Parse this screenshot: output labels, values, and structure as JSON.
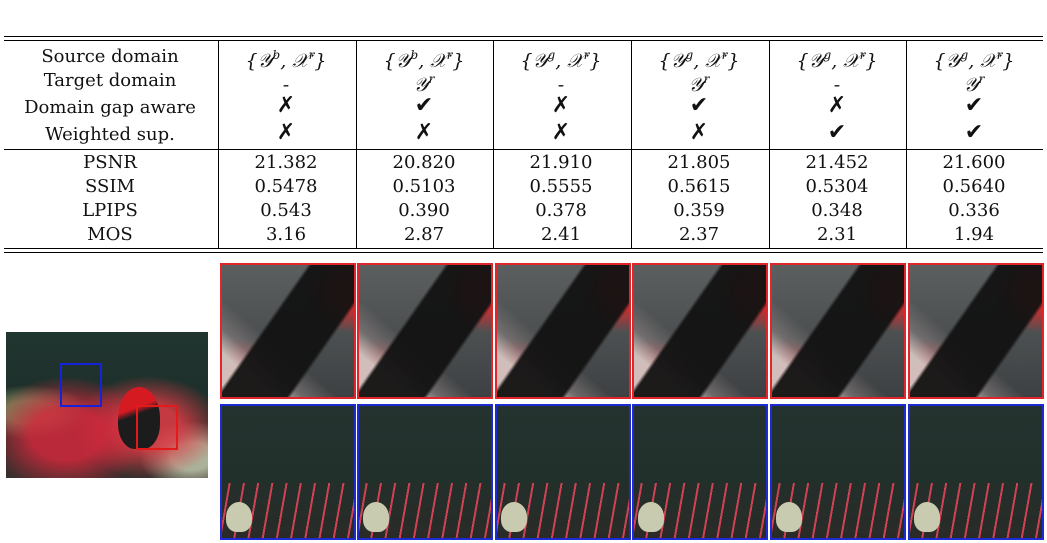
{
  "columns": [
    {
      "source": {
        "y": "𝒴",
        "ysup": "b",
        "x": "𝒳",
        "xsup": "r"
      },
      "target": "-",
      "target_sup": "",
      "domain_gap_aware": "✗",
      "weighted_sup": "✗"
    },
    {
      "source": {
        "y": "𝒴",
        "ysup": "b",
        "x": "𝒳",
        "xsup": "r"
      },
      "target": "𝒴",
      "target_sup": "r",
      "domain_gap_aware": "✔",
      "weighted_sup": "✗"
    },
    {
      "source": {
        "y": "𝒴",
        "ysup": "g",
        "x": "𝒳",
        "xsup": "r"
      },
      "target": "-",
      "target_sup": "",
      "domain_gap_aware": "✗",
      "weighted_sup": "✗"
    },
    {
      "source": {
        "y": "𝒴",
        "ysup": "g",
        "x": "𝒳",
        "xsup": "r"
      },
      "target": "𝒴",
      "target_sup": "r",
      "domain_gap_aware": "✔",
      "weighted_sup": "✗"
    },
    {
      "source": {
        "y": "𝒴",
        "ysup": "g",
        "x": "𝒳",
        "xsup": "r"
      },
      "target": "-",
      "target_sup": "",
      "domain_gap_aware": "✗",
      "weighted_sup": "✔"
    },
    {
      "source": {
        "y": "𝒴",
        "ysup": "g",
        "x": "𝒳",
        "xsup": "r"
      },
      "target": "𝒴",
      "target_sup": "r",
      "domain_gap_aware": "✔",
      "weighted_sup": "✔"
    }
  ],
  "row_labels": {
    "source": "Source domain",
    "target": "Target domain",
    "gap": "Domain gap aware",
    "weighted": "Weighted sup."
  },
  "metrics": [
    {
      "name": "PSNR",
      "values": [
        "21.382",
        "20.820",
        "21.910",
        "21.805",
        "21.452",
        "21.600"
      ]
    },
    {
      "name": "SSIM",
      "values": [
        "0.5478",
        "0.5103",
        "0.5555",
        "0.5615",
        "0.5304",
        "0.5640"
      ]
    },
    {
      "name": "LPIPS",
      "values": [
        "0.543",
        "0.390",
        "0.378",
        "0.359",
        "0.348",
        "0.336"
      ]
    },
    {
      "name": "MOS",
      "values": [
        "3.16",
        "2.87",
        "2.41",
        "2.37",
        "2.31",
        "1.94"
      ]
    }
  ],
  "colors": {
    "red_box": "#e0262a",
    "blue_box": "#1d2bd0"
  }
}
